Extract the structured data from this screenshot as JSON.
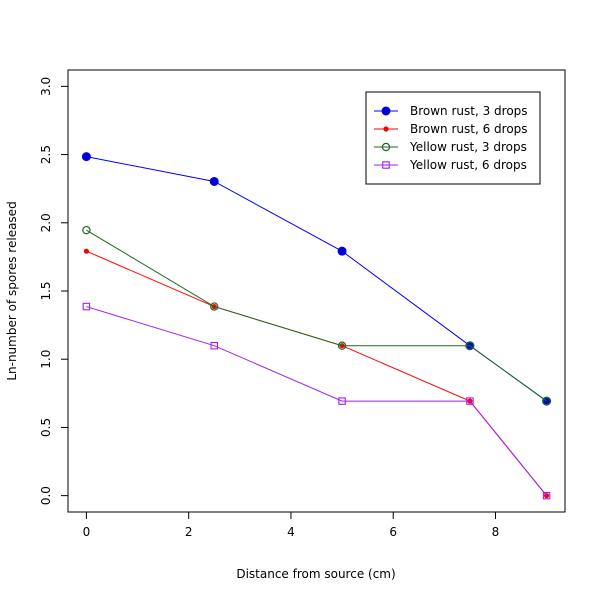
{
  "chart_data": {
    "type": "line",
    "title": "",
    "xlabel": "Distance from source (cm)",
    "ylabel": "Ln-number of spores released",
    "xlim": [
      -0.36,
      9.36
    ],
    "ylim": [
      -0.12,
      3.12
    ],
    "xticks": [
      0,
      2,
      4,
      6,
      8
    ],
    "xtick_labels": [
      "0",
      "2",
      "4",
      "6",
      "8"
    ],
    "yticks": [
      0,
      0.5,
      1,
      1.5,
      2,
      2.5,
      3
    ],
    "ytick_labels": [
      "0.0",
      "0.5",
      "1.0",
      "1.5",
      "2.0",
      "2.5",
      "3.0"
    ],
    "grid": false,
    "legend_position": "top-right",
    "x": [
      0,
      2.5,
      5,
      7.5,
      9
    ],
    "series": [
      {
        "name": "Brown rust, 3 drops",
        "values": [
          2.485,
          2.303,
          1.792,
          1.099,
          0.693
        ],
        "color": "#0000ff",
        "marker": "filled-circle"
      },
      {
        "name": "Brown rust, 6 drops",
        "values": [
          1.792,
          1.386,
          1.099,
          0.693,
          0.0
        ],
        "color": "#ff0000",
        "marker": "small-dot"
      },
      {
        "name": "Yellow rust, 3 drops",
        "values": [
          1.946,
          1.386,
          1.099,
          1.099,
          0.693
        ],
        "color": "#1e6b1e",
        "marker": "open-circle"
      },
      {
        "name": "Yellow rust, 6 drops",
        "values": [
          1.386,
          1.099,
          0.693,
          0.693,
          0.0
        ],
        "color": "#a020f0",
        "marker": "open-square"
      }
    ]
  }
}
